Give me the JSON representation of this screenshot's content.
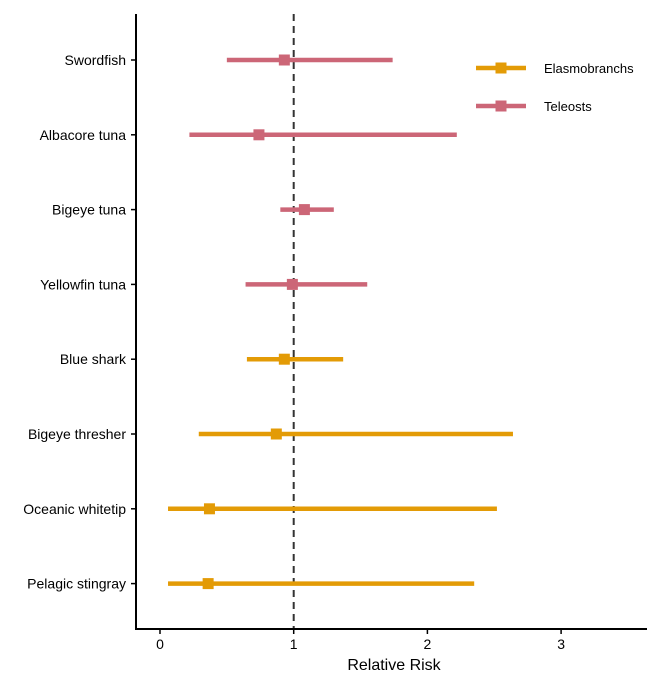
{
  "chart_data": {
    "type": "forest-plot",
    "xlabel": "Relative Risk",
    "ylabel": "",
    "xlim": [
      -0.18,
      3.65
    ],
    "x_ticks": [
      0,
      1,
      2,
      3
    ],
    "x_tick_labels": [
      "0",
      "1",
      "2",
      "3"
    ],
    "reference_line": 1,
    "grid": false,
    "legend_position": "top-right",
    "colors": {
      "Elasmobranchs": "#E39B06",
      "Teleosts": "#CC6677"
    },
    "series": [
      {
        "name": "Elasmobranchs",
        "points": [
          {
            "category": "Blue shark",
            "estimate": 0.93,
            "lower": 0.65,
            "upper": 1.37
          },
          {
            "category": "Bigeye thresher",
            "estimate": 0.87,
            "lower": 0.29,
            "upper": 2.64
          },
          {
            "category": "Oceanic whitetip",
            "estimate": 0.37,
            "lower": 0.06,
            "upper": 2.52
          },
          {
            "category": "Pelagic stingray",
            "estimate": 0.36,
            "lower": 0.06,
            "upper": 2.35
          }
        ]
      },
      {
        "name": "Teleosts",
        "points": [
          {
            "category": "Swordfish",
            "estimate": 0.93,
            "lower": 0.5,
            "upper": 1.74
          },
          {
            "category": "Albacore tuna",
            "estimate": 0.74,
            "lower": 0.22,
            "upper": 2.22
          },
          {
            "category": "Bigeye tuna",
            "estimate": 1.08,
            "lower": 0.9,
            "upper": 1.3
          },
          {
            "category": "Yellowfin tuna",
            "estimate": 0.99,
            "lower": 0.64,
            "upper": 1.55
          }
        ]
      }
    ],
    "categories": [
      "Swordfish",
      "Albacore tuna",
      "Bigeye tuna",
      "Yellowfin tuna",
      "Blue shark",
      "Bigeye thresher",
      "Oceanic whitetip",
      "Pelagic stingray"
    ]
  }
}
